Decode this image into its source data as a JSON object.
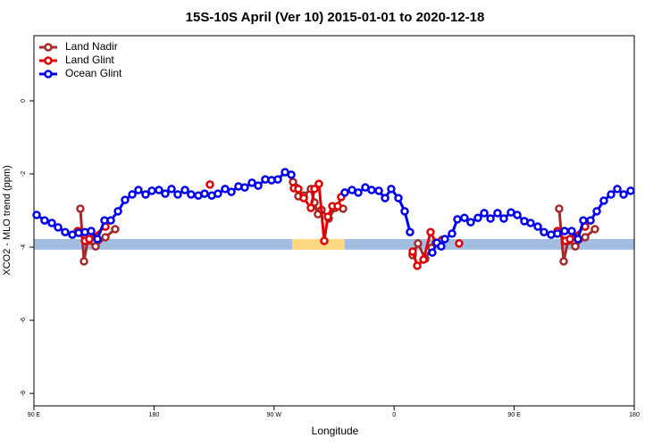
{
  "chart_data": {
    "type": "line",
    "title": "15S-10S April (Ver 10)   2015-01-01 to 2020-12-18",
    "xlabel": "Longitude",
    "ylabel": "XCO2 - MLO trend (ppm)",
    "xlim": [
      90,
      540
    ],
    "ylim": [
      -8.34,
      1.78
    ],
    "xticks": [
      {
        "value": 90,
        "label": "90 E"
      },
      180,
      {
        "value": 270,
        "label": "90 W"
      },
      {
        "value": 360,
        "label": "0"
      },
      {
        "value": 450,
        "label": "90 E"
      },
      {
        "value": 540,
        "label": "180"
      }
    ],
    "yticks": [
      0,
      -2,
      -4,
      -6,
      -8
    ],
    "legend": "top-left",
    "bands": [
      {
        "y": [
          -4.07,
          -3.78
        ],
        "color": "#a3bde0"
      }
    ],
    "highlights": [
      {
        "x": [
          283.5,
          323
        ],
        "y": [
          -4.07,
          -3.78
        ],
        "color": "#ffd980"
      }
    ],
    "series": [
      {
        "name": "Land Nadir",
        "color": "#a52a2a",
        "x": [
          124.8,
          127.5,
          130.2,
          136.2,
          143.6,
          150.9,
          null,
          284.2,
          286.2,
          288.2,
          292.2,
          297.6,
          300.3,
          302.9,
          305.6,
          311.0,
          315.7,
          321.7,
          null,
          373.9,
          377.9,
          383.3,
          388.0,
          null,
          483.7,
          487.1,
          490.4,
          495.8,
          503.2,
          510.5
        ],
        "values": [
          -2.95,
          -4.39,
          -3.83,
          -3.98,
          -3.73,
          -3.51,
          null,
          -2.22,
          -2.37,
          -2.61,
          -2.59,
          -2.41,
          -2.78,
          -3.1,
          -2.98,
          -3.22,
          -2.93,
          -2.95,
          null,
          -4.22,
          -3.9,
          -4.32,
          -4.02,
          null,
          -2.95,
          -4.39,
          -3.83,
          -3.98,
          -3.73,
          -3.51
        ]
      },
      {
        "name": "Land Glint",
        "color": "#e00000",
        "x": [
          122.8,
          128.2,
          131.5,
          143.6,
          null,
          221.9,
          null,
          284.9,
          288.2,
          292.2,
          297.6,
          300.3,
          303.6,
          307.6,
          310.3,
          313.7,
          317.7,
          320.3,
          null,
          373.9,
          377.3,
          382.0,
          387.3,
          391.3,
          396.0,
          null,
          408.7,
          null,
          482.4,
          488.4,
          491.8,
          503.2
        ],
        "values": [
          -3.56,
          -3.83,
          -3.78,
          -3.44,
          null,
          -2.29,
          null,
          -2.39,
          -2.41,
          -2.66,
          -2.93,
          -2.41,
          -2.27,
          -3.83,
          -3.17,
          -2.88,
          -2.88,
          -2.63,
          null,
          -4.12,
          -4.51,
          -4.34,
          -3.59,
          -3.88,
          -3.8,
          null,
          -3.9,
          null,
          -3.56,
          -3.83,
          -3.78,
          -3.44
        ]
      },
      {
        "name": "Ocean Glint",
        "color": "#0000ee",
        "x": [
          92.0,
          98.0,
          103.4,
          108.1,
          113.4,
          118.8,
          123.5,
          128.2,
          132.9,
          137.6,
          142.9,
          147.6,
          153.0,
          158.3,
          163.7,
          168.3,
          173.7,
          178.4,
          183.7,
          188.4,
          193.1,
          197.8,
          203.2,
          207.8,
          213.2,
          217.9,
          223.3,
          227.9,
          233.3,
          238.0,
          243.3,
          248.0,
          253.4,
          258.1,
          263.4,
          268.1,
          272.8,
          278.2,
          282.9,
          null,
          323.0,
          328.4,
          333.1,
          338.4,
          343.1,
          348.5,
          353.2,
          357.8,
          363.2,
          367.9,
          371.9,
          null,
          388.6,
          392.0,
          395.3,
          398.0,
          403.4,
          407.4,
          412.7,
          417.4,
          422.8,
          427.5,
          432.2,
          437.5,
          442.2,
          447.6,
          452.3,
          457.6,
          462.3,
          467.7,
          472.3,
          477.7,
          482.4,
          487.8,
          493.1,
          497.8,
          501.8,
          507.2,
          511.9,
          517.2,
          522.6,
          527.3,
          532.0,
          537.3
        ],
        "values": [
          -3.12,
          -3.27,
          -3.34,
          -3.46,
          -3.59,
          -3.66,
          -3.61,
          -3.59,
          -3.56,
          -3.78,
          -3.27,
          -3.27,
          -3.02,
          -2.71,
          -2.56,
          -2.44,
          -2.56,
          -2.46,
          -2.44,
          -2.54,
          -2.41,
          -2.56,
          -2.44,
          -2.56,
          -2.59,
          -2.54,
          -2.59,
          -2.54,
          -2.41,
          -2.49,
          -2.34,
          -2.37,
          -2.24,
          -2.32,
          -2.15,
          -2.17,
          -2.15,
          -1.95,
          -2.02,
          null,
          -2.51,
          -2.44,
          -2.51,
          -2.37,
          -2.44,
          -2.46,
          -2.66,
          -2.41,
          -2.66,
          -3.02,
          -3.59,
          null,
          -4.15,
          -3.88,
          -3.98,
          -3.78,
          -3.63,
          -3.24,
          -3.2,
          -3.32,
          -3.2,
          -3.07,
          -3.22,
          -3.07,
          -3.22,
          -3.05,
          -3.12,
          -3.29,
          -3.34,
          -3.44,
          -3.59,
          -3.66,
          -3.63,
          -3.56,
          -3.56,
          -3.78,
          -3.27,
          -3.27,
          -3.02,
          -2.73,
          -2.56,
          -2.41,
          -2.56,
          -2.46
        ]
      }
    ]
  }
}
